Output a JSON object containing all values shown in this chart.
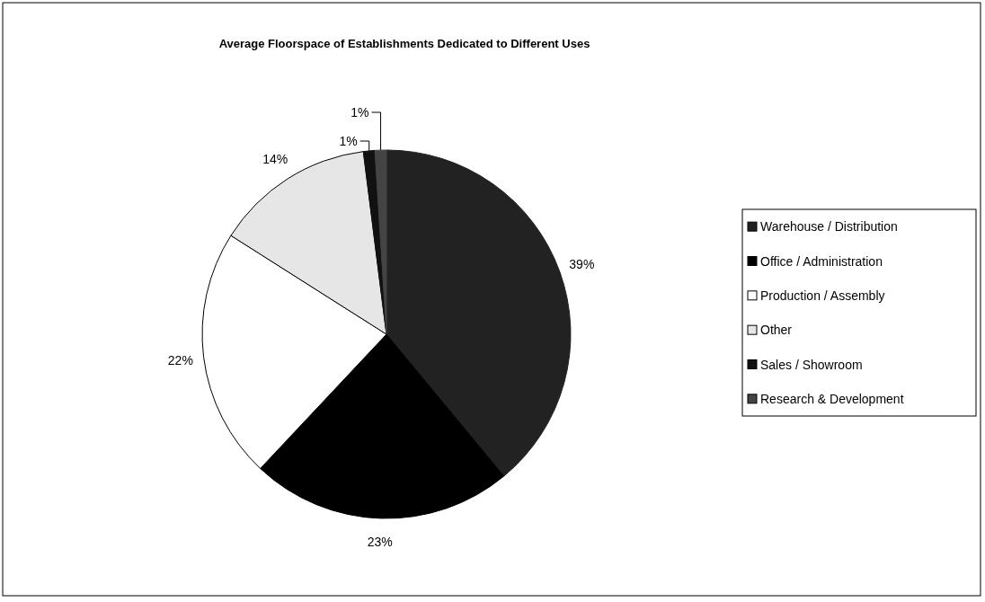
{
  "chart_data": {
    "type": "pie",
    "title": "Average Floorspace of Establishments Dedicated to Different Uses",
    "categories": [
      "Warehouse / Distribution",
      "Office / Administration",
      "Production / Assembly",
      "Other",
      "Sales / Showroom",
      "Research & Development"
    ],
    "values": [
      39,
      23,
      22,
      14,
      1,
      1
    ],
    "colors": [
      "#222222",
      "#000000",
      "#ffffff",
      "#e6e6e6",
      "#111111",
      "#444444"
    ],
    "value_labels": [
      "39%",
      "23%",
      "22%",
      "14%",
      "1%",
      "1%"
    ],
    "legend": "right"
  }
}
